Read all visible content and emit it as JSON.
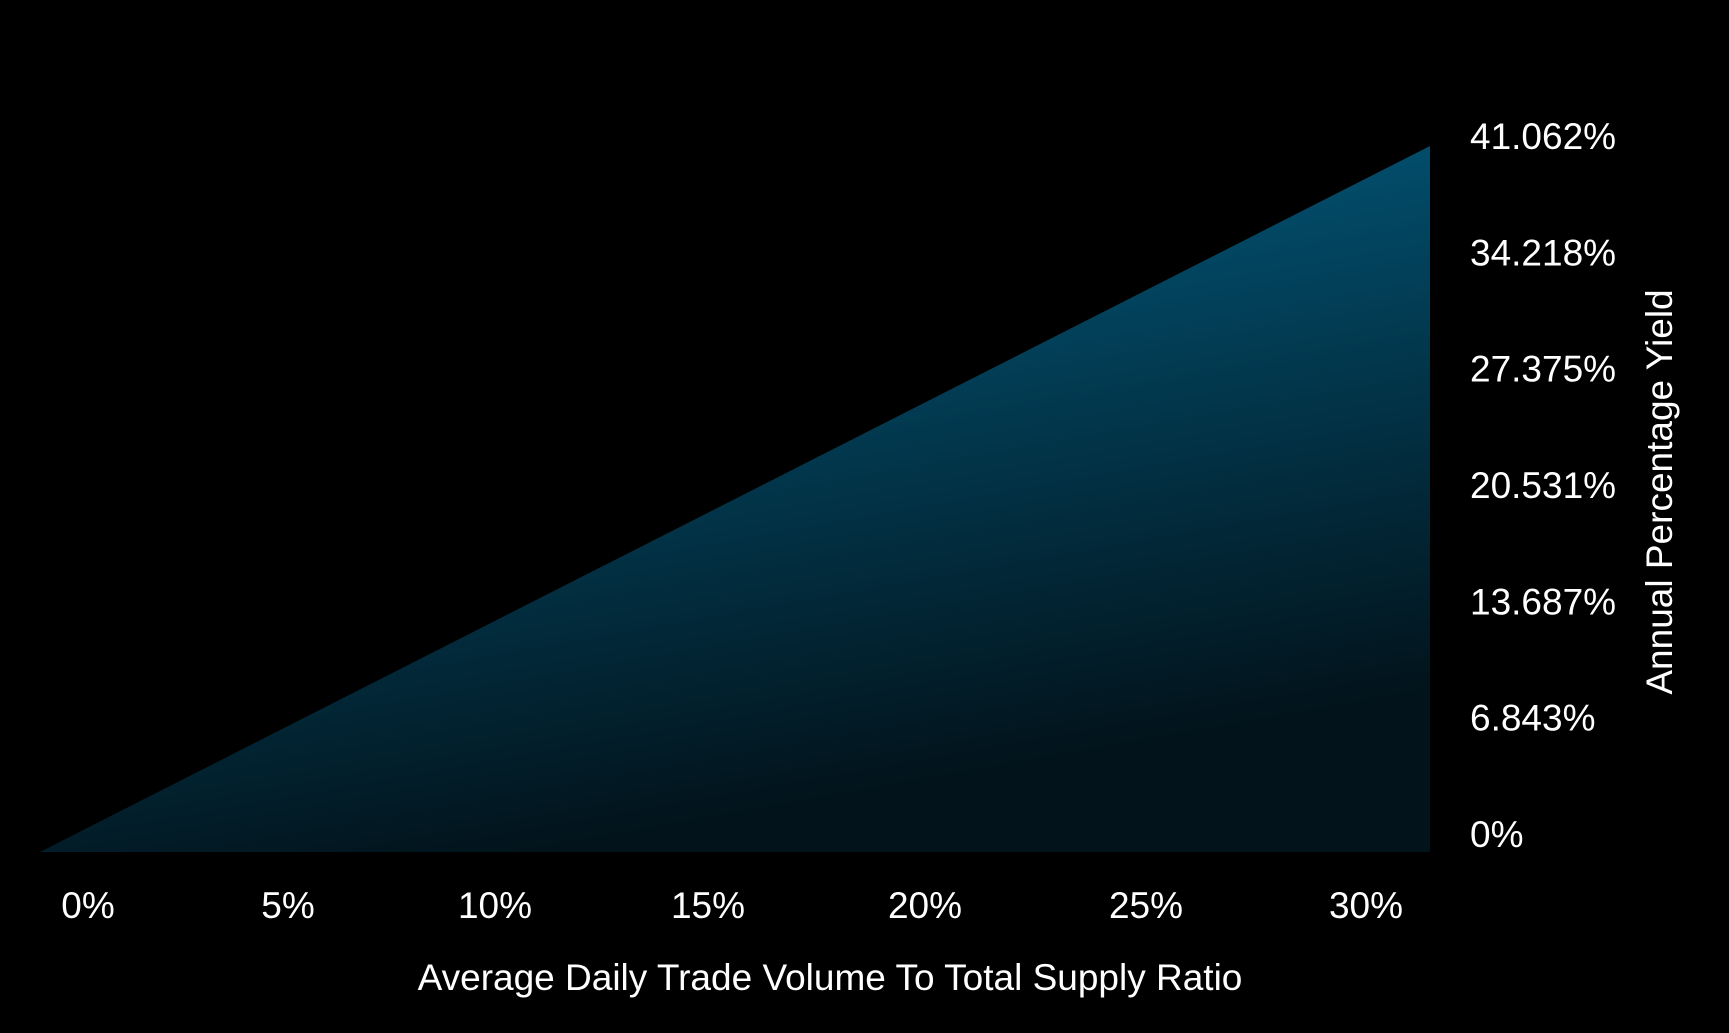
{
  "chart_data": {
    "type": "area",
    "x": [
      0,
      31.5
    ],
    "y": [
      0,
      41.062
    ],
    "xlim": [
      -1.05,
      31.5
    ],
    "ylim": [
      0,
      41.062
    ],
    "x_ticks": [
      "0%",
      "5%",
      "10%",
      "15%",
      "20%",
      "25%",
      "30%"
    ],
    "x_tick_values": [
      0,
      5,
      10,
      15,
      20,
      25,
      30
    ],
    "y_ticks": [
      "0%",
      "6.843%",
      "13.687%",
      "20.531%",
      "27.375%",
      "34.218%",
      "41.062%"
    ],
    "y_tick_values": [
      0,
      6.843,
      13.687,
      20.531,
      27.375,
      34.218,
      41.062
    ],
    "xlabel": "Average Daily Trade Volume To Total Supply Ratio",
    "ylabel": "Annual Percentage Yield",
    "y_axis_position": "right",
    "grid": false,
    "legend": "none",
    "colors": {
      "background": "#000000",
      "fill_top": "#02678f",
      "fill_bottom": "#02131b",
      "text": "#ffffff"
    }
  }
}
